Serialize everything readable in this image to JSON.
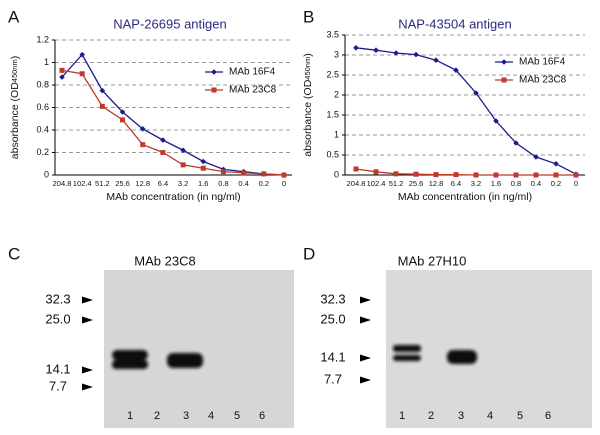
{
  "chart_data": [
    {
      "type": "line",
      "label": "A",
      "title": "NAP-26695 antigen",
      "xlabel": "MAb concentration (in ng/ml)",
      "ylabel": [
        "absorbance (OD",
        "450nm",
        ")"
      ],
      "categories": [
        "204.8",
        "102.4",
        "51.2",
        "25.6",
        "12.8",
        "6.4",
        "3.2",
        "1.6",
        "0.8",
        "0.4",
        "0.2",
        "0"
      ],
      "series": [
        {
          "name": "MAb 16F4",
          "color": "#1c1c8c",
          "marker": "diamond",
          "values": [
            0.87,
            1.07,
            0.75,
            0.56,
            0.41,
            0.31,
            0.22,
            0.12,
            0.05,
            0.03,
            0.01,
            0
          ]
        },
        {
          "name": "MAb 23C8",
          "color": "#c0392b",
          "marker": "square",
          "values": [
            0.93,
            0.9,
            0.61,
            0.49,
            0.27,
            0.2,
            0.09,
            0.06,
            0.03,
            0.02,
            0.01,
            0
          ]
        }
      ],
      "ylim": [
        0,
        1.2
      ],
      "yticks": [
        0,
        0.2,
        0.4,
        0.6,
        0.8,
        1,
        1.2
      ],
      "grid": true
    },
    {
      "type": "line",
      "label": "B",
      "title": "NAP-43504 antigen",
      "xlabel": "MAb concentration (in ng/ml)",
      "ylabel": [
        "absorbance (OD",
        "450nm",
        ")"
      ],
      "categories": [
        "204.8",
        "102.4",
        "51.2",
        "25.6",
        "12.8",
        "6.4",
        "3.2",
        "1.6",
        "0.8",
        "0.4",
        "0.2",
        "0"
      ],
      "series": [
        {
          "name": "MAb 16F4",
          "color": "#1c1c8c",
          "marker": "diamond",
          "values": [
            3.18,
            3.12,
            3.05,
            3.01,
            2.87,
            2.62,
            2.05,
            1.35,
            0.8,
            0.45,
            0.28,
            0.02
          ]
        },
        {
          "name": "MAb 23C8",
          "color": "#c0392b",
          "marker": "square",
          "values": [
            0.15,
            0.08,
            0.03,
            0.02,
            0.01,
            0.01,
            0,
            0,
            0,
            0,
            0,
            0
          ]
        }
      ],
      "ylim": [
        0,
        3.5
      ],
      "yticks": [
        0,
        0.5,
        1,
        1.5,
        2,
        2.5,
        3,
        3.5
      ],
      "grid": true
    }
  ],
  "blots": [
    {
      "label": "C",
      "title": "MAb 23C8",
      "markers": [
        "32.3",
        "25.0",
        "14.1",
        "7.7"
      ],
      "lanes": [
        "1",
        "2",
        "3",
        "4",
        "5",
        "6"
      ]
    },
    {
      "label": "D",
      "title": "MAb 27H10",
      "markers": [
        "32.3",
        "25.0",
        "14.1",
        "7.7"
      ],
      "lanes": [
        "1",
        "2",
        "3",
        "4",
        "5",
        "6"
      ]
    }
  ]
}
